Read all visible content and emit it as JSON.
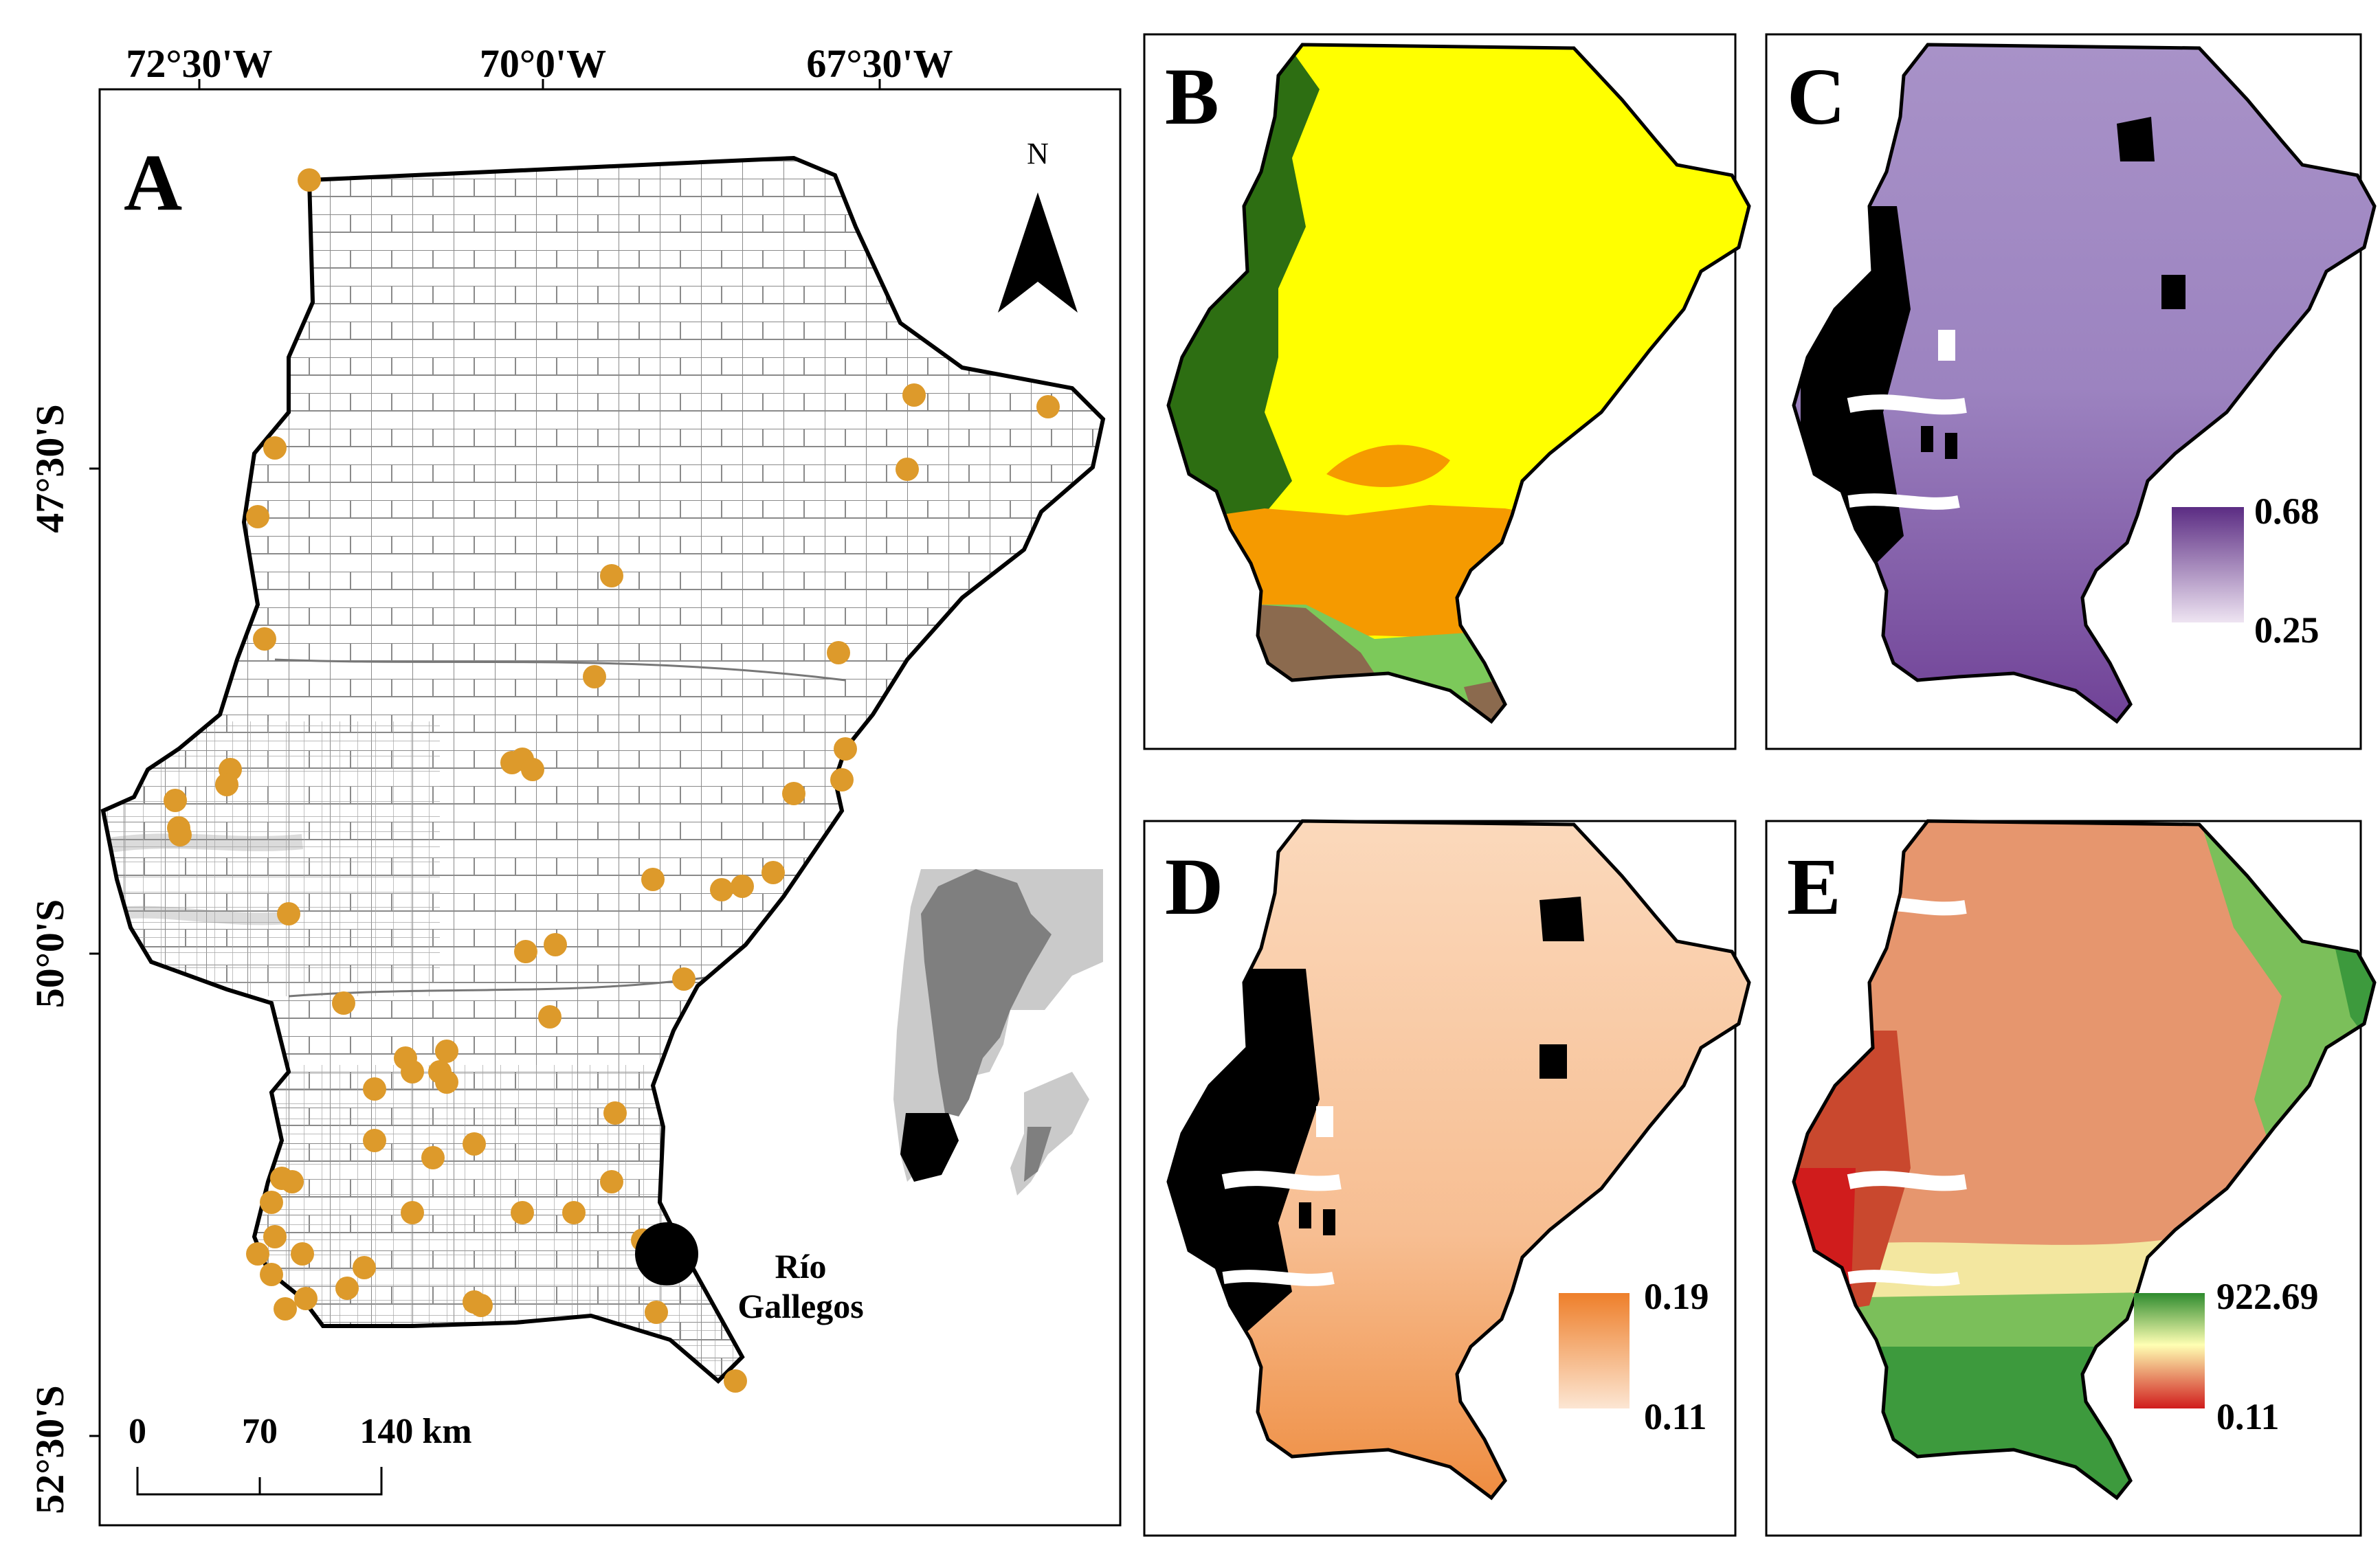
{
  "colors": {
    "point": "#DD9A2B",
    "ecoregion_forest": "#2D6E12",
    "ecoregion_steppe": "#FFFF00",
    "ecoregion_central": "#F59A00",
    "ecoregion_south_grass": "#7CC95A",
    "ecoregion_brown": "#8B6A4E",
    "purple_max": "#5B2C83",
    "purple_min": "#EEE4F2",
    "orange_max": "#EE7F2A",
    "orange_min": "#FCE6D3",
    "green_max": "#2E8B2E",
    "mid_yellow": "#FFFFB3",
    "red_min": "#D01C1C"
  },
  "panelA": {
    "label": "A",
    "lon_labels": [
      "72°30'W",
      "70°0'W",
      "67°30'W"
    ],
    "lat_labels": [
      "47°30'S",
      "50°0'S",
      "52°30'S"
    ],
    "north_label": "N",
    "north_icon": "north-arrow-icon",
    "city_line1": "Río",
    "city_line2": "Gallegos",
    "scale_labels": [
      "0",
      "70",
      "140 km"
    ]
  },
  "panelB": {
    "label": "B"
  },
  "panelC": {
    "label": "C",
    "legend_max": "0.68",
    "legend_min": "0.25"
  },
  "panelD": {
    "label": "D",
    "legend_max": "0.19",
    "legend_min": "0.11"
  },
  "panelE": {
    "label": "E",
    "legend_max": "922.69",
    "legend_min": "0.11"
  }
}
